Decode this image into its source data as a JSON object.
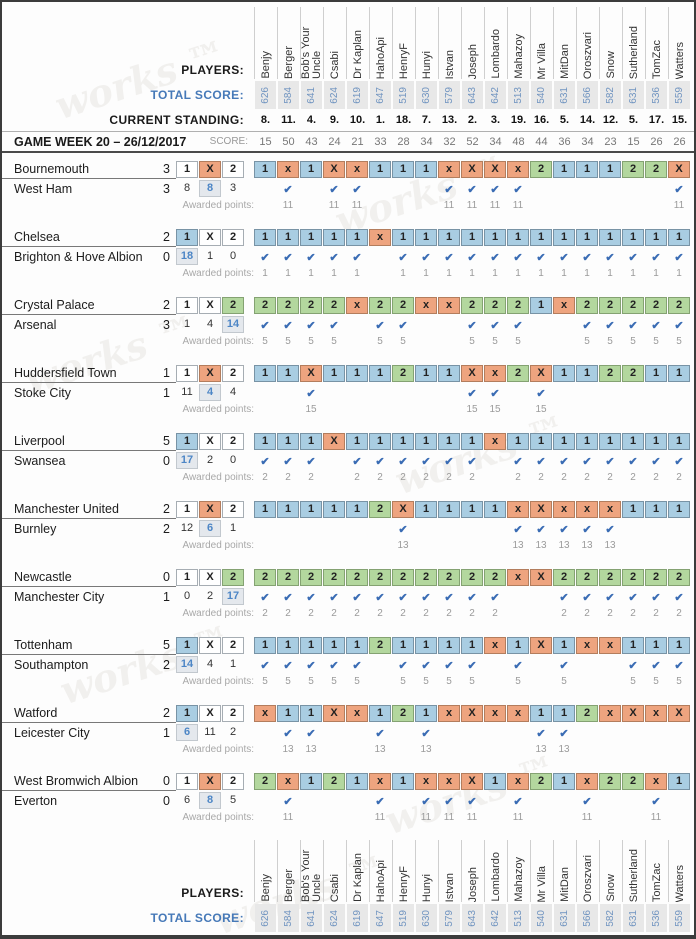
{
  "labels": {
    "players": "PLAYERS:",
    "total_score": "TOTAL SCORE:",
    "current_standing": "CURRENT STANDING:",
    "game_week": "GAME WEEK 20 – 26/12/2017",
    "score": "SCORE:",
    "awarded_points": "Awarded points:",
    "check_icon": "✔",
    "watermark": "works ™"
  },
  "colors": {
    "home_win_cell": "#a9cde2",
    "draw_cell": "#eea47f",
    "away_win_cell": "#b3d79e",
    "highlighted_count_text": "#4d86c6",
    "check_mark": "#3a6cb4",
    "total_score_text": "#7094c0",
    "total_score_label": "#4679b8"
  },
  "players": [
    {
      "name": "Benjy",
      "total": "626",
      "standing": "8.",
      "week_score": "15"
    },
    {
      "name": "Berger",
      "total": "584",
      "standing": "11.",
      "week_score": "50"
    },
    {
      "name": "Bob's Your Uncle",
      "total": "641",
      "standing": "4.",
      "week_score": "43"
    },
    {
      "name": "Csabi",
      "total": "624",
      "standing": "9.",
      "week_score": "24"
    },
    {
      "name": "Dr Kaplan",
      "total": "619",
      "standing": "10.",
      "week_score": "21"
    },
    {
      "name": "HahoApi",
      "total": "647",
      "standing": "1.",
      "week_score": "33"
    },
    {
      "name": "HenryF",
      "total": "519",
      "standing": "18.",
      "week_score": "28"
    },
    {
      "name": "Hunyi",
      "total": "630",
      "standing": "7.",
      "week_score": "34"
    },
    {
      "name": "Istvan",
      "total": "579",
      "standing": "13.",
      "week_score": "32"
    },
    {
      "name": "Joseph",
      "total": "643",
      "standing": "2.",
      "week_score": "52"
    },
    {
      "name": "Lombardo",
      "total": "642",
      "standing": "3.",
      "week_score": "34"
    },
    {
      "name": "Mahazoy",
      "total": "513",
      "standing": "19.",
      "week_score": "48"
    },
    {
      "name": "Mr Villa",
      "total": "540",
      "standing": "16.",
      "week_score": "44"
    },
    {
      "name": "MitDan",
      "total": "631",
      "standing": "5.",
      "week_score": "36"
    },
    {
      "name": "Oroszvari",
      "total": "566",
      "standing": "14.",
      "week_score": "34"
    },
    {
      "name": "Snow",
      "total": "582",
      "standing": "12.",
      "week_score": "23"
    },
    {
      "name": "Sutherland",
      "total": "631",
      "standing": "5.",
      "week_score": "15"
    },
    {
      "name": "TomZac",
      "total": "536",
      "standing": "17.",
      "week_score": "26"
    },
    {
      "name": "Watters",
      "total": "559",
      "standing": "15.",
      "week_score": "26"
    }
  ],
  "matches": [
    {
      "home": "Bournemouth",
      "home_score": "3",
      "away": "West Ham",
      "away_score": "3",
      "result": "X",
      "counts": [
        "8",
        "8",
        "3"
      ],
      "points": "11",
      "predictions": [
        "1",
        "x",
        "1",
        "X",
        "x",
        "1",
        "1",
        "1",
        "x",
        "X",
        "X",
        "x",
        "2",
        "1",
        "1",
        "1",
        "2",
        "2",
        "X"
      ]
    },
    {
      "home": "Chelsea",
      "home_score": "2",
      "away": "Brighton & Hove Albion",
      "away_score": "0",
      "result": "1",
      "counts": [
        "18",
        "1",
        "0"
      ],
      "points": "1",
      "predictions": [
        "1",
        "1",
        "1",
        "1",
        "1",
        "x",
        "1",
        "1",
        "1",
        "1",
        "1",
        "1",
        "1",
        "1",
        "1",
        "1",
        "1",
        "1",
        "1"
      ]
    },
    {
      "home": "Crystal Palace",
      "home_score": "2",
      "away": "Arsenal",
      "away_score": "3",
      "result": "2",
      "counts": [
        "1",
        "4",
        "14"
      ],
      "points": "5",
      "predictions": [
        "2",
        "2",
        "2",
        "2",
        "x",
        "2",
        "2",
        "x",
        "x",
        "2",
        "2",
        "2",
        "1",
        "x",
        "2",
        "2",
        "2",
        "2",
        "2"
      ]
    },
    {
      "home": "Huddersfield Town",
      "home_score": "1",
      "away": "Stoke City",
      "away_score": "1",
      "result": "X",
      "counts": [
        "11",
        "4",
        "4"
      ],
      "points": "15",
      "predictions": [
        "1",
        "1",
        "X",
        "1",
        "1",
        "1",
        "2",
        "1",
        "1",
        "X",
        "x",
        "2",
        "X",
        "1",
        "1",
        "2",
        "2",
        "1",
        "1"
      ]
    },
    {
      "home": "Liverpool",
      "home_score": "5",
      "away": "Swansea",
      "away_score": "0",
      "result": "1",
      "counts": [
        "17",
        "2",
        "0"
      ],
      "points": "2",
      "predictions": [
        "1",
        "1",
        "1",
        "X",
        "1",
        "1",
        "1",
        "1",
        "1",
        "1",
        "x",
        "1",
        "1",
        "1",
        "1",
        "1",
        "1",
        "1",
        "1"
      ]
    },
    {
      "home": "Manchester United",
      "home_score": "2",
      "away": "Burnley",
      "away_score": "2",
      "result": "X",
      "counts": [
        "12",
        "6",
        "1"
      ],
      "points": "13",
      "predictions": [
        "1",
        "1",
        "1",
        "1",
        "1",
        "2",
        "X",
        "1",
        "1",
        "1",
        "1",
        "x",
        "X",
        "x",
        "x",
        "x",
        "1",
        "1",
        "1"
      ]
    },
    {
      "home": "Newcastle",
      "home_score": "0",
      "away": "Manchester City",
      "away_score": "1",
      "result": "2",
      "counts": [
        "0",
        "2",
        "17"
      ],
      "points": "2",
      "predictions": [
        "2",
        "2",
        "2",
        "2",
        "2",
        "2",
        "2",
        "2",
        "2",
        "2",
        "2",
        "x",
        "X",
        "2",
        "2",
        "2",
        "2",
        "2",
        "2"
      ]
    },
    {
      "home": "Tottenham",
      "home_score": "5",
      "away": "Southampton",
      "away_score": "2",
      "result": "1",
      "counts": [
        "14",
        "4",
        "1"
      ],
      "points": "5",
      "predictions": [
        "1",
        "1",
        "1",
        "1",
        "1",
        "2",
        "1",
        "1",
        "1",
        "1",
        "x",
        "1",
        "X",
        "1",
        "x",
        "x",
        "1",
        "1",
        "1"
      ]
    },
    {
      "home": "Watford",
      "home_score": "2",
      "away": "Leicester City",
      "away_score": "1",
      "result": "1",
      "counts": [
        "6",
        "11",
        "2"
      ],
      "points": "13",
      "predictions": [
        "x",
        "1",
        "1",
        "X",
        "x",
        "1",
        "2",
        "1",
        "x",
        "X",
        "x",
        "x",
        "1",
        "1",
        "2",
        "x",
        "X",
        "x",
        "X"
      ]
    },
    {
      "home": "West Bromwich Albion",
      "home_score": "0",
      "away": "Everton",
      "away_score": "0",
      "result": "X",
      "counts": [
        "6",
        "8",
        "5"
      ],
      "points": "11",
      "predictions": [
        "2",
        "x",
        "1",
        "2",
        "1",
        "x",
        "1",
        "x",
        "x",
        "X",
        "1",
        "x",
        "2",
        "1",
        "x",
        "2",
        "2",
        "x",
        "1"
      ]
    }
  ]
}
